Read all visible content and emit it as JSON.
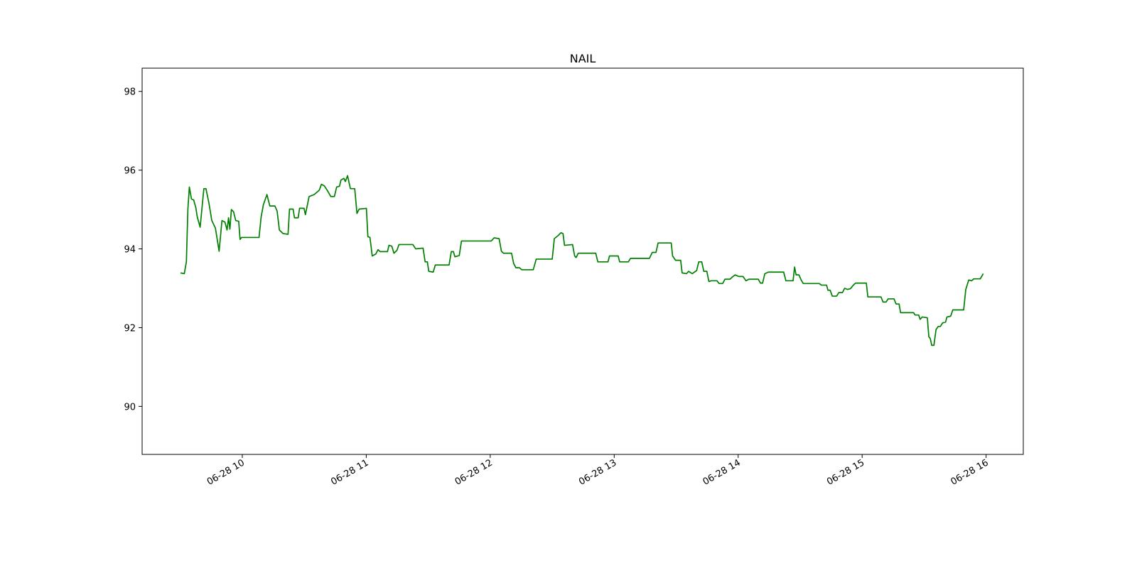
{
  "chart_data": {
    "type": "line",
    "title": "NAIL",
    "color": "#008000",
    "x": [
      9.502,
      9.532,
      9.549,
      9.561,
      9.573,
      9.59,
      9.608,
      9.625,
      9.637,
      9.66,
      9.69,
      9.707,
      9.731,
      9.754,
      9.783,
      9.813,
      9.836,
      9.86,
      9.877,
      9.889,
      9.9,
      9.912,
      9.93,
      9.947,
      9.971,
      9.982,
      9.994,
      10.135,
      10.152,
      10.17,
      10.199,
      10.222,
      10.263,
      10.281,
      10.299,
      10.328,
      10.369,
      10.381,
      10.41,
      10.421,
      10.451,
      10.462,
      10.498,
      10.509,
      10.539,
      10.58,
      10.621,
      10.638,
      10.662,
      10.685,
      10.714,
      10.743,
      10.761,
      10.784,
      10.796,
      10.82,
      10.831,
      10.849,
      10.872,
      10.907,
      10.925,
      10.943,
      11.001,
      11.013,
      11.03,
      11.048,
      11.077,
      11.095,
      11.112,
      11.171,
      11.183,
      11.206,
      11.223,
      11.247,
      11.264,
      11.376,
      11.399,
      11.458,
      11.475,
      11.493,
      11.504,
      11.54,
      11.557,
      11.668,
      11.686,
      11.703,
      11.715,
      11.75,
      11.768,
      12.008,
      12.031,
      12.072,
      12.09,
      12.107,
      12.172,
      12.189,
      12.207,
      12.236,
      12.254,
      12.347,
      12.371,
      12.5,
      12.517,
      12.552,
      12.57,
      12.587,
      12.599,
      12.664,
      12.681,
      12.693,
      12.71,
      12.851,
      12.868,
      12.95,
      12.962,
      13.032,
      13.044,
      13.114,
      13.132,
      13.284,
      13.307,
      13.337,
      13.354,
      13.46,
      13.471,
      13.495,
      13.536,
      13.548,
      13.583,
      13.6,
      13.63,
      13.647,
      13.665,
      13.682,
      13.706,
      13.723,
      13.747,
      13.764,
      13.782,
      13.829,
      13.846,
      13.875,
      13.893,
      13.934,
      13.951,
      13.975,
      14.004,
      14.039,
      14.063,
      14.086,
      14.162,
      14.18,
      14.197,
      14.215,
      14.244,
      14.367,
      14.385,
      14.443,
      14.455,
      14.467,
      14.49,
      14.508,
      14.525,
      14.654,
      14.671,
      14.713,
      14.724,
      14.742,
      14.759,
      14.794,
      14.812,
      14.841,
      14.859,
      14.882,
      14.906,
      14.929,
      14.947,
      15.034,
      15.046,
      15.152,
      15.169,
      15.193,
      15.21,
      15.257,
      15.274,
      15.298,
      15.31,
      15.415,
      15.427,
      15.456,
      15.468,
      15.485,
      15.526,
      15.538,
      15.55,
      15.561,
      15.579,
      15.596,
      15.614,
      15.631,
      15.649,
      15.673,
      15.684,
      15.714,
      15.731,
      15.819,
      15.836,
      15.86,
      15.883,
      15.901,
      15.953,
      15.977
    ],
    "values": [
      93.39,
      93.37,
      93.67,
      95.0,
      95.57,
      95.27,
      95.24,
      95.05,
      94.81,
      94.55,
      95.53,
      95.53,
      95.16,
      94.72,
      94.53,
      93.94,
      94.72,
      94.68,
      94.48,
      94.79,
      94.5,
      95.0,
      94.94,
      94.72,
      94.7,
      94.24,
      94.29,
      94.29,
      94.81,
      95.12,
      95.38,
      95.09,
      95.09,
      94.96,
      94.48,
      94.39,
      94.37,
      95.01,
      95.01,
      94.79,
      94.79,
      95.03,
      95.03,
      94.87,
      95.33,
      95.38,
      95.49,
      95.64,
      95.6,
      95.49,
      95.33,
      95.33,
      95.57,
      95.59,
      95.75,
      95.79,
      95.71,
      95.86,
      95.53,
      95.53,
      94.9,
      95.01,
      95.03,
      94.31,
      94.29,
      93.82,
      93.87,
      93.98,
      93.93,
      93.93,
      94.09,
      94.07,
      93.89,
      93.96,
      94.11,
      94.11,
      94.0,
      94.02,
      93.67,
      93.67,
      93.43,
      93.41,
      93.59,
      93.59,
      93.93,
      93.93,
      93.8,
      93.83,
      94.2,
      94.2,
      94.28,
      94.26,
      93.94,
      93.89,
      93.89,
      93.63,
      93.52,
      93.52,
      93.47,
      93.47,
      93.74,
      93.74,
      94.26,
      94.35,
      94.41,
      94.39,
      94.09,
      94.11,
      93.82,
      93.78,
      93.89,
      93.89,
      93.67,
      93.67,
      93.82,
      93.82,
      93.67,
      93.67,
      93.76,
      93.76,
      93.91,
      93.91,
      94.15,
      94.15,
      93.82,
      93.71,
      93.71,
      93.39,
      93.37,
      93.43,
      93.37,
      93.41,
      93.45,
      93.67,
      93.67,
      93.43,
      93.43,
      93.17,
      93.19,
      93.19,
      93.12,
      93.12,
      93.23,
      93.23,
      93.28,
      93.34,
      93.3,
      93.3,
      93.19,
      93.23,
      93.23,
      93.13,
      93.13,
      93.37,
      93.41,
      93.41,
      93.19,
      93.19,
      93.54,
      93.34,
      93.34,
      93.21,
      93.12,
      93.12,
      93.08,
      93.08,
      92.95,
      92.95,
      92.8,
      92.8,
      92.89,
      92.89,
      93.0,
      92.97,
      92.99,
      93.08,
      93.13,
      93.13,
      92.78,
      92.78,
      92.65,
      92.65,
      92.73,
      92.73,
      92.6,
      92.6,
      92.38,
      92.38,
      92.32,
      92.32,
      92.21,
      92.27,
      92.25,
      91.77,
      91.72,
      91.55,
      91.55,
      91.95,
      92.03,
      92.03,
      92.12,
      92.14,
      92.27,
      92.29,
      92.45,
      92.45,
      92.97,
      93.21,
      93.19,
      93.24,
      93.24,
      93.37
    ],
    "xlim": [
      9.192,
      16.3
    ],
    "xticks": [
      {
        "value": 10,
        "label": "06-28 10"
      },
      {
        "value": 11,
        "label": "06-28 11"
      },
      {
        "value": 12,
        "label": "06-28 12"
      },
      {
        "value": 13,
        "label": "06-28 13"
      },
      {
        "value": 14,
        "label": "06-28 14"
      },
      {
        "value": 15,
        "label": "06-28 15"
      },
      {
        "value": 16,
        "label": "06-28 16"
      }
    ],
    "ylim": [
      88.78,
      98.59
    ],
    "yticks": [
      90,
      92,
      94,
      96,
      98
    ]
  }
}
